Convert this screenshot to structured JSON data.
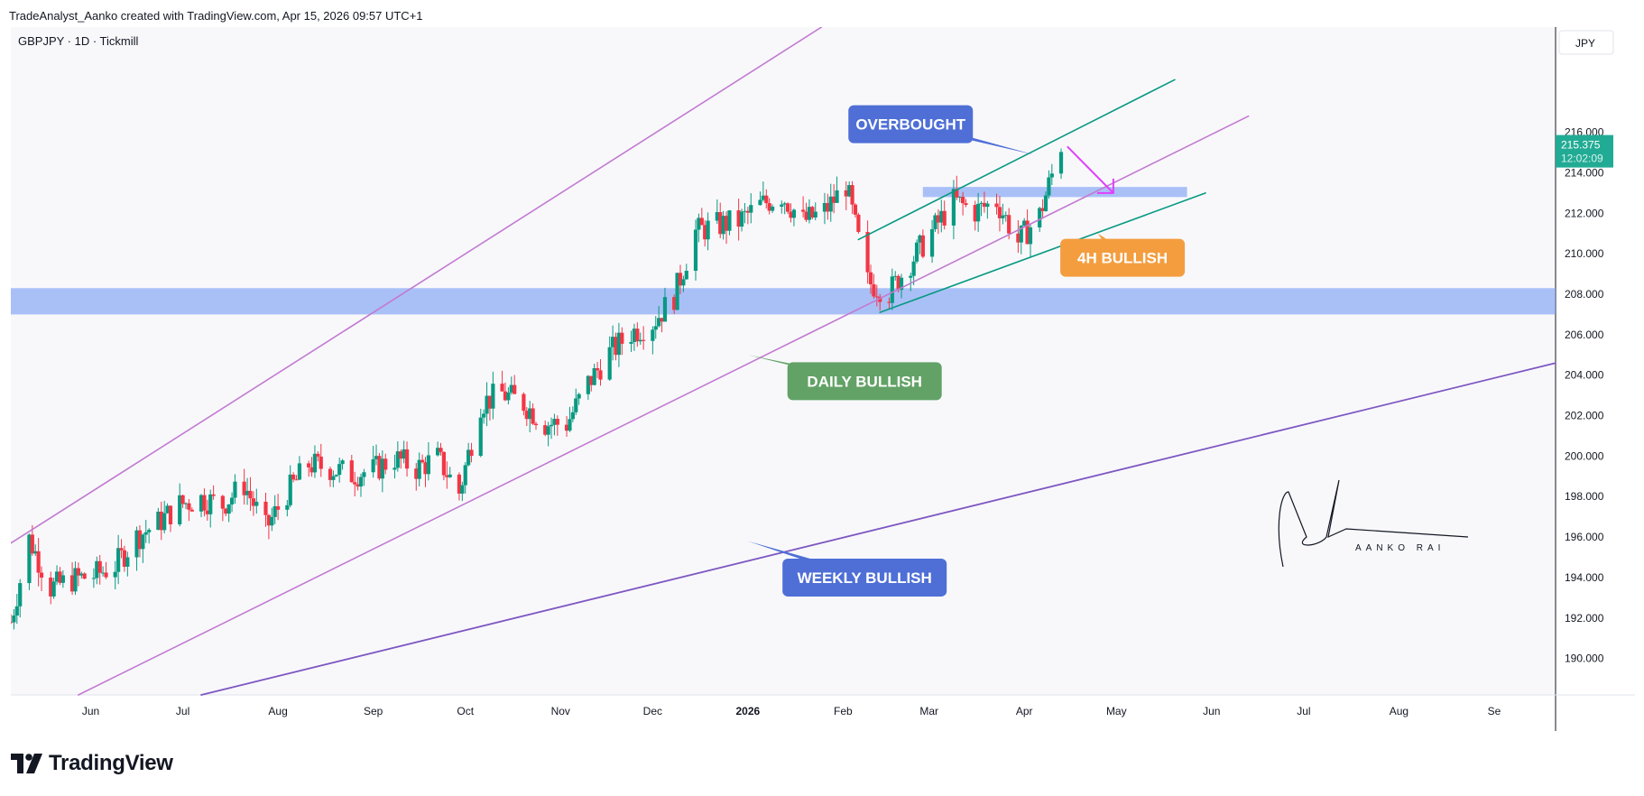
{
  "header": {
    "attribution": "TradeAnalyst_Aanko created with TradingView.com, Apr 15, 2026 09:57 UTC+1"
  },
  "brand": {
    "name": "TradingView"
  },
  "chart_data": {
    "type": "candlestick",
    "symbol_label": "GBPJPY · 1D · Tickmill",
    "currency": "JPY",
    "last_price": "215.375",
    "countdown": "12:02:09",
    "ylim": [
      188.2,
      221.2
    ],
    "y_ticks": [
      {
        "value": 216,
        "label": "216.000"
      },
      {
        "value": 214,
        "label": "214.000"
      },
      {
        "value": 212,
        "label": "212.000"
      },
      {
        "value": 210,
        "label": "210.000"
      },
      {
        "value": 208,
        "label": "208.000"
      },
      {
        "value": 206,
        "label": "206.000"
      },
      {
        "value": 204,
        "label": "204.000"
      },
      {
        "value": 202,
        "label": "202.000"
      },
      {
        "value": 200,
        "label": "200.000"
      },
      {
        "value": 198,
        "label": "198.000"
      },
      {
        "value": 196,
        "label": "196.000"
      },
      {
        "value": 194,
        "label": "194.000"
      },
      {
        "value": 192,
        "label": "192.000"
      },
      {
        "value": 190,
        "label": "190.000"
      }
    ],
    "x_range": [
      "2025-05-06",
      "2026-09-21"
    ],
    "x_ticks": [
      {
        "date": "2025-06-01",
        "label": "Jun",
        "bold": false
      },
      {
        "date": "2025-07-01",
        "label": "Jul",
        "bold": false
      },
      {
        "date": "2025-08-01",
        "label": "Aug",
        "bold": false
      },
      {
        "date": "2025-09-01",
        "label": "Sep",
        "bold": false
      },
      {
        "date": "2025-10-01",
        "label": "Oct",
        "bold": false
      },
      {
        "date": "2025-11-01",
        "label": "Nov",
        "bold": false
      },
      {
        "date": "2025-12-01",
        "label": "Dec",
        "bold": false
      },
      {
        "date": "2026-01-01",
        "label": "2026",
        "bold": true
      },
      {
        "date": "2026-02-01",
        "label": "Feb",
        "bold": false
      },
      {
        "date": "2026-03-01",
        "label": "Mar",
        "bold": false
      },
      {
        "date": "2026-04-01",
        "label": "Apr",
        "bold": false
      },
      {
        "date": "2026-05-01",
        "label": "May",
        "bold": false
      },
      {
        "date": "2026-06-01",
        "label": "Jun",
        "bold": false
      },
      {
        "date": "2026-07-01",
        "label": "Jul",
        "bold": false
      },
      {
        "date": "2026-08-01",
        "label": "Aug",
        "bold": false
      },
      {
        "date": "2026-09-01",
        "label": "Se",
        "bold": false
      }
    ],
    "price_path": [
      [
        "2025-05-06",
        191.8
      ],
      [
        "2025-05-12",
        195.9
      ],
      [
        "2025-05-19",
        193.5
      ],
      [
        "2025-05-26",
        193.9
      ],
      [
        "2025-06-02",
        194.1
      ],
      [
        "2025-06-09",
        194.6
      ],
      [
        "2025-06-16",
        196.0
      ],
      [
        "2025-06-23",
        196.7
      ],
      [
        "2025-06-30",
        197.6
      ],
      [
        "2025-07-07",
        197.9
      ],
      [
        "2025-07-14",
        197.6
      ],
      [
        "2025-07-21",
        198.6
      ],
      [
        "2025-07-28",
        196.4
      ],
      [
        "2025-08-04",
        198.2
      ],
      [
        "2025-08-11",
        199.6
      ],
      [
        "2025-08-18",
        199.4
      ],
      [
        "2025-08-25",
        199.1
      ],
      [
        "2025-09-01",
        199.3
      ],
      [
        "2025-09-08",
        199.9
      ],
      [
        "2025-09-15",
        199.4
      ],
      [
        "2025-09-22",
        199.9
      ],
      [
        "2025-09-29",
        198.2
      ],
      [
        "2025-10-06",
        202.6
      ],
      [
        "2025-10-13",
        203.1
      ],
      [
        "2025-10-20",
        202.6
      ],
      [
        "2025-10-27",
        201.6
      ],
      [
        "2025-11-03",
        201.6
      ],
      [
        "2025-11-10",
        203.6
      ],
      [
        "2025-11-17",
        205.1
      ],
      [
        "2025-11-24",
        206.1
      ],
      [
        "2025-12-01",
        206.6
      ],
      [
        "2025-12-08",
        207.9
      ],
      [
        "2025-12-15",
        211.1
      ],
      [
        "2025-12-22",
        211.4
      ],
      [
        "2025-12-29",
        211.6
      ],
      [
        "2026-01-05",
        212.4
      ],
      [
        "2026-01-12",
        212.9
      ],
      [
        "2026-01-19",
        211.6
      ],
      [
        "2026-01-26",
        212.1
      ],
      [
        "2026-02-02",
        213.4
      ],
      [
        "2026-02-09",
        208.6
      ],
      [
        "2026-02-16",
        208.1
      ],
      [
        "2026-02-23",
        209.6
      ],
      [
        "2026-03-02",
        211.1
      ],
      [
        "2026-03-09",
        212.6
      ],
      [
        "2026-03-16",
        212.1
      ],
      [
        "2026-03-23",
        212.6
      ],
      [
        "2026-03-30",
        210.6
      ],
      [
        "2026-04-06",
        211.9
      ],
      [
        "2026-04-13",
        215.4
      ]
    ],
    "zones": [
      {
        "from": "2025-05-06",
        "to": "2026-09-21",
        "low": 207.0,
        "high": 208.3
      },
      {
        "from": "2026-02-27",
        "to": "2026-05-24",
        "low": 212.8,
        "high": 213.3
      }
    ],
    "trendlines": [
      {
        "color": "#c27ad1",
        "width": 1.6,
        "from": [
          "2025-05-06",
          195.7
        ],
        "to": [
          "2026-01-25",
          221.2
        ]
      },
      {
        "color": "#c27ad1",
        "width": 1.6,
        "from": [
          "2025-05-28",
          188.2
        ],
        "to": [
          "2026-06-13",
          216.8
        ]
      },
      {
        "color": "#7e57c2",
        "width": 1.8,
        "from": [
          "2025-07-07",
          188.2
        ],
        "to": [
          "2026-09-21",
          204.6
        ]
      },
      {
        "color": "#089981",
        "width": 1.6,
        "from": [
          "2026-02-06",
          210.7
        ],
        "to": [
          "2026-05-20",
          218.6
        ]
      },
      {
        "color": "#089981",
        "width": 1.6,
        "from": [
          "2026-02-13",
          207.1
        ],
        "to": [
          "2026-05-30",
          213.0
        ]
      }
    ],
    "projection_arrow": {
      "color": "#e040fb",
      "points": [
        [
          "2026-04-15",
          215.3
        ],
        [
          "2026-04-30",
          213.0
        ]
      ]
    },
    "annotations": [
      {
        "text": "OVERBOUGHT",
        "color": "#4f6fd6",
        "date": "2026-02-23",
        "price": 216.4,
        "pointer": [
          "2026-04-04",
          214.9
        ]
      },
      {
        "text": "4H BULLISH",
        "color": "#f49d3f",
        "date": "2026-05-03",
        "price": 209.8,
        "pointer": [
          "2026-04-25",
          211.0
        ]
      },
      {
        "text": "DAILY BULLISH",
        "color": "#62a266",
        "date": "2026-02-08",
        "price": 203.7,
        "pointer": [
          "2026-01-01",
          205.0
        ]
      },
      {
        "text": "WEEKLY BULLISH",
        "color": "#4f6fd6",
        "date": "2026-02-08",
        "price": 194.0,
        "pointer": [
          "2026-01-01",
          195.8
        ]
      }
    ],
    "signature_text": "AANKO RAI"
  }
}
